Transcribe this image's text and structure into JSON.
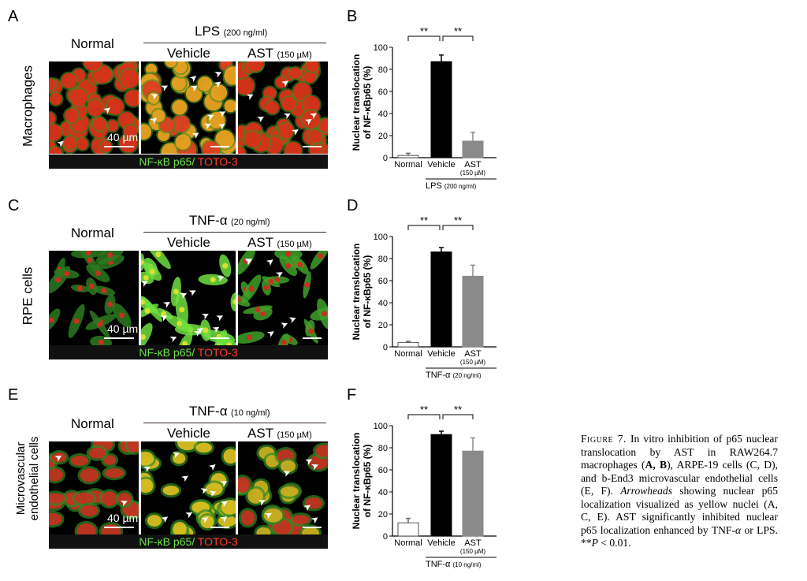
{
  "panels": [
    {
      "id": "A",
      "row_label": "Macrophages",
      "row_label_sub": "",
      "normal": "Normal",
      "stim_big": "LPS",
      "stim_small": "(200 ng/ml)",
      "vehicle": "Vehicle",
      "ast_big": "AST",
      "ast_small": "(150 µM)",
      "scale": "40 µm",
      "bar_green": "NF-κB p65/",
      "bar_red": " TOTO-3",
      "style": "macro"
    },
    {
      "id": "C",
      "row_label": "RPE cells",
      "row_label_sub": "",
      "normal": "Normal",
      "stim_big": "TNF-α",
      "stim_small": "(20 ng/ml)",
      "vehicle": "Vehicle",
      "ast_big": "AST",
      "ast_small": "(150 µM)",
      "scale": "40 µm",
      "bar_green": "NF-κB p65/",
      "bar_red": " TOTO-3",
      "style": "rpe"
    },
    {
      "id": "E",
      "row_label": "Microvascular",
      "row_label_sub": "endothelial cells",
      "normal": "Normal",
      "stim_big": "TNF-α",
      "stim_small": "(10 ng/ml)",
      "vehicle": "Vehicle",
      "ast_big": "AST",
      "ast_small": "(150 µM)",
      "scale": "40 µm",
      "bar_green": "NF-κB p65/",
      "bar_red": " TOTO-3",
      "style": "endo"
    }
  ],
  "chart_data": [
    {
      "id": "B",
      "type": "bar",
      "categories": [
        "Normal",
        "Vehicle",
        "AST"
      ],
      "category_sublabels": [
        "",
        "",
        "(150 µM)"
      ],
      "values": [
        2,
        87,
        15
      ],
      "errors": [
        2,
        6,
        8
      ],
      "bar_colors": [
        "#ffffff",
        "#000000",
        "#8a8a8a"
      ],
      "ylabel": "Nuclear translocation of NF-κBp65 (%)",
      "ylabel_line1": "Nuclear translocation",
      "ylabel_line2": "of NF-κBp65 (%)",
      "yticks": [
        0,
        20,
        40,
        60,
        80,
        100
      ],
      "ylim": [
        0,
        100
      ],
      "group_label": "LPS",
      "group_label_small": "(200 ng/ml)",
      "significance": [
        "**",
        "**"
      ]
    },
    {
      "id": "D",
      "type": "bar",
      "categories": [
        "Normal",
        "Vehicle",
        "AST"
      ],
      "category_sublabels": [
        "",
        "",
        "(150 µM)"
      ],
      "values": [
        4,
        86,
        64
      ],
      "errors": [
        1,
        4,
        10
      ],
      "bar_colors": [
        "#ffffff",
        "#000000",
        "#8a8a8a"
      ],
      "ylabel": "Nuclear translocation of NF-κBp65 (%)",
      "ylabel_line1": "Nuclear translocation",
      "ylabel_line2": "of NF-κBp65 (%)",
      "yticks": [
        0,
        20,
        40,
        60,
        80,
        100
      ],
      "ylim": [
        0,
        100
      ],
      "group_label": "TNF-α",
      "group_label_small": "(20 ng/ml)",
      "significance": [
        "**",
        "**"
      ]
    },
    {
      "id": "F",
      "type": "bar",
      "categories": [
        "Normal",
        "Vehicle",
        "AST"
      ],
      "category_sublabels": [
        "",
        "",
        "(150 µM)"
      ],
      "values": [
        12,
        92,
        77
      ],
      "errors": [
        4,
        3,
        12
      ],
      "bar_colors": [
        "#ffffff",
        "#000000",
        "#8a8a8a"
      ],
      "ylabel": "Nuclear translocation of NF-κBp65 (%)",
      "ylabel_line1": "Nuclear translocation",
      "ylabel_line2": "of NF-κBp65 (%)",
      "yticks": [
        0,
        20,
        40,
        60,
        80,
        100
      ],
      "ylim": [
        0,
        100
      ],
      "group_label": "TNF-α",
      "group_label_small": "(10 ng/ml)",
      "significance": [
        "**",
        "**"
      ]
    }
  ],
  "caption": {
    "fig_label": "Figure 7.",
    "text_1": " In vitro inhibition of p65 nuclear translocation by AST in RAW264.7 macrophages (",
    "ref_1": "A, B",
    "text_2": "), ARPE-19 cells (C, D), and b-End3 microvascular endothelial cells (E, F). ",
    "italic_1": "Arrowheads",
    "text_3": " showing nuclear p65 localization visualized as yellow nuclei (A, C, E). AST significantly inhibited nuclear p65 localization enhanced by TNF-",
    "alpha": "α",
    "text_4": " or LPS. **",
    "p": "P",
    "text_5": " < 0.01."
  }
}
